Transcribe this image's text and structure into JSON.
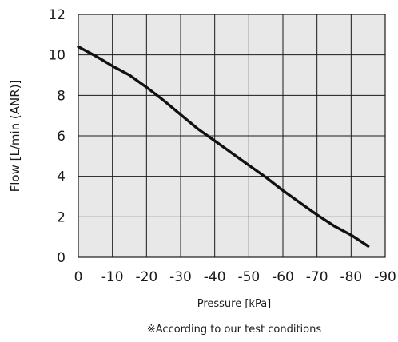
{
  "colors": {
    "plot_background": "#e8e8e8",
    "grid": "#1a1a1a",
    "frame": "#1a1a1a",
    "series_line": "#111111",
    "text": "#1a1a1a"
  },
  "chart_data": {
    "type": "line",
    "title": "",
    "xlabel": "Pressure [kPa]",
    "ylabel": "Flow [L/min (ANR)]",
    "note": "※According to our test conditions",
    "xlim": [
      0,
      -90
    ],
    "ylim": [
      0,
      12
    ],
    "grid": true,
    "x_ticks": [
      0,
      -10,
      -20,
      -30,
      -40,
      -50,
      -60,
      -70,
      -80,
      -90
    ],
    "x_tick_labels": [
      "0",
      "-10",
      "-20",
      "-30",
      "-40",
      "-50",
      "-60",
      "-70",
      "-80",
      "-90"
    ],
    "y_ticks": [
      0,
      2,
      4,
      6,
      8,
      10,
      12
    ],
    "y_tick_labels": [
      "0",
      "2",
      "4",
      "6",
      "8",
      "10",
      "12"
    ],
    "series": [
      {
        "x": [
          0,
          -5,
          -10,
          -15,
          -20,
          -25,
          -30,
          -35,
          -40,
          -45,
          -50,
          -55,
          -60,
          -65,
          -70,
          -75,
          -80,
          -85
        ],
        "y": [
          10.4,
          9.95,
          9.45,
          9.0,
          8.4,
          7.75,
          7.05,
          6.35,
          5.75,
          5.15,
          4.55,
          3.95,
          3.3,
          2.7,
          2.1,
          1.55,
          1.1,
          0.55
        ]
      }
    ]
  }
}
